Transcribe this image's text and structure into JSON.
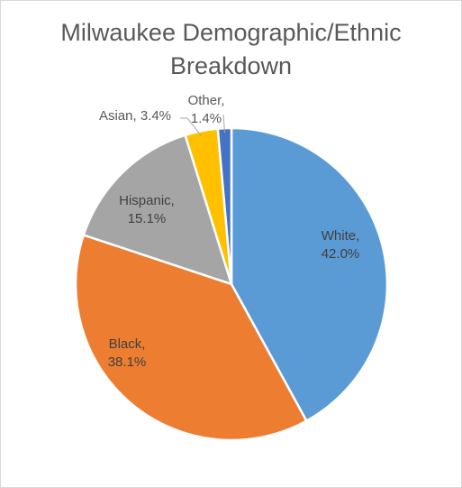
{
  "chart_data": {
    "type": "pie",
    "title_lines": [
      "Milwaukee Demographic/Ethnic",
      "Breakdown"
    ],
    "slices": [
      {
        "name": "White",
        "value": 42.0,
        "label_line1": "White,",
        "label_line2": "42.0%",
        "color": "#5b9bd5"
      },
      {
        "name": "Black",
        "value": 38.1,
        "label_line1": "Black,",
        "label_line2": "38.1%",
        "color": "#ed7d31"
      },
      {
        "name": "Hispanic",
        "value": 15.1,
        "label_line1": "Hispanic,",
        "label_line2": "15.1%",
        "color": "#a5a5a5"
      },
      {
        "name": "Asian",
        "value": 3.4,
        "label_line1": "Asian, 3.4%",
        "label_line2": "",
        "color": "#ffc000"
      },
      {
        "name": "Other",
        "value": 1.4,
        "label_line1": "Other,",
        "label_line2": "1.4%",
        "color": "#4472c4"
      }
    ],
    "legend": "none",
    "label_color": "#404040"
  }
}
